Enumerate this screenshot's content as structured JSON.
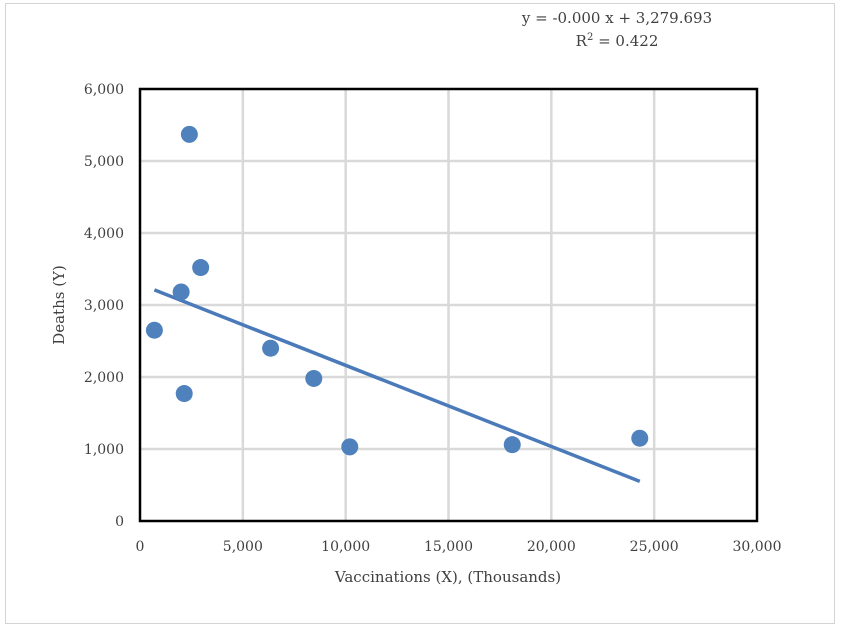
{
  "chart_data": {
    "type": "scatter",
    "title": "",
    "xlabel": "Vaccinations (X), (Thousands)",
    "ylabel": "Deaths (Y)",
    "xlim": [
      0,
      30000
    ],
    "ylim": [
      0,
      6000
    ],
    "xticks": [
      0,
      5000,
      10000,
      15000,
      20000,
      25000,
      30000
    ],
    "yticks": [
      0,
      1000,
      2000,
      3000,
      4000,
      5000,
      6000
    ],
    "xtick_labels": [
      "0",
      "5,000",
      "10,000",
      "15,000",
      "20,000",
      "25,000",
      "30,000"
    ],
    "ytick_labels": [
      "0",
      "1,000",
      "2,000",
      "3,000",
      "4,000",
      "5,000",
      "6,000"
    ],
    "grid": true,
    "legend": "none",
    "series": [
      {
        "color": "#4f81bd",
        "points": [
          {
            "x": 700,
            "y": 2650
          },
          {
            "x": 2000,
            "y": 3180
          },
          {
            "x": 2150,
            "y": 1770
          },
          {
            "x": 2400,
            "y": 5370
          },
          {
            "x": 2950,
            "y": 3520
          },
          {
            "x": 6350,
            "y": 2400
          },
          {
            "x": 8450,
            "y": 1980
          },
          {
            "x": 10200,
            "y": 1030
          },
          {
            "x": 18100,
            "y": 1060
          },
          {
            "x": 24300,
            "y": 1150
          }
        ]
      }
    ],
    "trendline": {
      "color": "#4a7ab9",
      "from": {
        "x": 700,
        "y": 3210
      },
      "to": {
        "x": 24300,
        "y": 550
      },
      "equation": "y = -0.000 x + 3,279.693",
      "r2_label": "R",
      "r2_exponent": "2",
      "r2_value": " = 0.422"
    }
  }
}
